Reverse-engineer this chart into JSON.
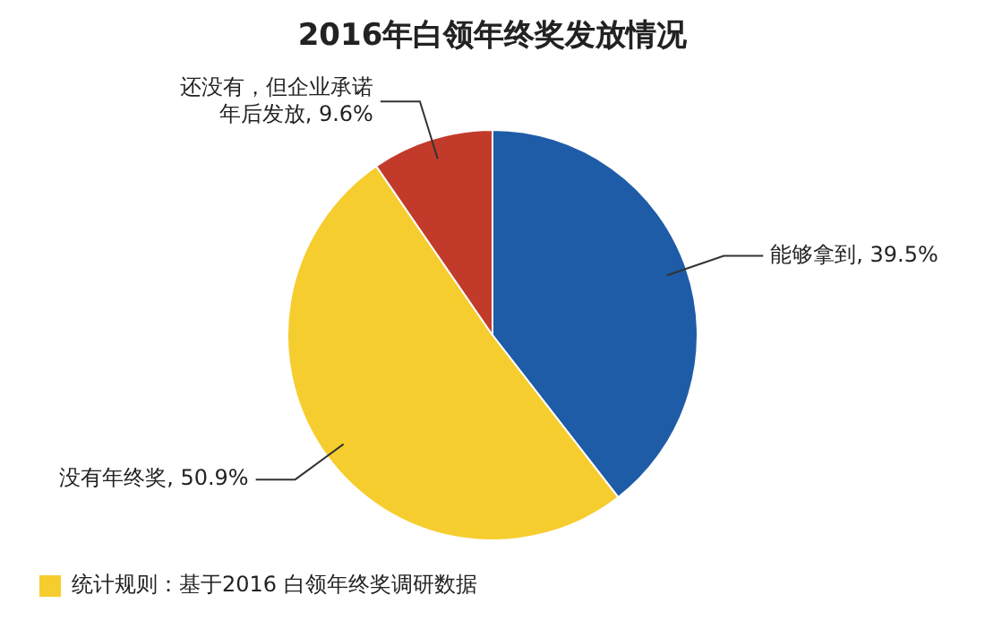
{
  "chart_data": {
    "type": "pie",
    "title": "2016年白领年终奖发放情况",
    "categories": [
      "能够拿到",
      "没有年终奖",
      "还没有，但企业承诺年后发放"
    ],
    "values": [
      39.5,
      50.9,
      9.6
    ],
    "value_labels": [
      "39.5%",
      "50.9%",
      "9.6%"
    ],
    "colors": [
      "#1f5ca8",
      "#f6cd2e",
      "#c23b2a"
    ],
    "legend": false,
    "annotations": [
      "统计规则：基于2016 白领年终奖调研数据"
    ]
  }
}
